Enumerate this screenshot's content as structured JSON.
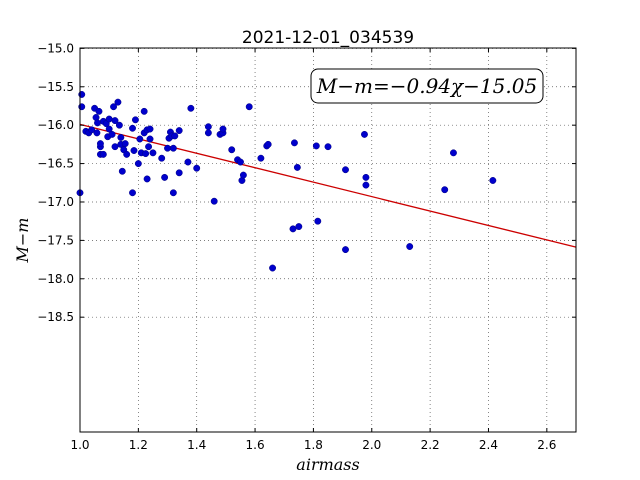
{
  "chart_data": {
    "type": "scatter",
    "title": "2021-12-01_034539",
    "xlabel": "airmass",
    "ylabel": "M−m",
    "xlim": [
      1.0,
      2.7
    ],
    "ylim": [
      -14.995,
      -19.995
    ],
    "y_inverted": true,
    "grid": true,
    "x_ticks": [
      1.0,
      1.2,
      1.4,
      1.6,
      1.8,
      2.0,
      2.2,
      2.4,
      2.6
    ],
    "x_tick_labels": [
      "1.0",
      "1.2",
      "1.4",
      "1.6",
      "1.8",
      "2.0",
      "2.2",
      "2.4",
      "2.6"
    ],
    "y_ticks": [
      -15.0,
      -15.5,
      -16.0,
      -16.5,
      -17.0,
      -17.5,
      -18.0,
      -18.5
    ],
    "y_tick_labels": [
      "−15.0",
      "−15.5",
      "−16.0",
      "−16.5",
      "−17.0",
      "−17.5",
      "−18.0",
      "−18.5"
    ],
    "annotation": "M−m=−0.94χ−15.05",
    "fit": {
      "slope": -0.94,
      "intercept": -15.05
    },
    "point_color": "#0000cc",
    "fit_color": "#cc0000",
    "points": [
      [
        1.0,
        -16.88
      ],
      [
        1.006,
        -15.6
      ],
      [
        1.006,
        -15.76
      ],
      [
        1.02,
        -16.08
      ],
      [
        1.03,
        -16.1
      ],
      [
        1.04,
        -16.06
      ],
      [
        1.05,
        -15.78
      ],
      [
        1.055,
        -15.9
      ],
      [
        1.058,
        -16.1
      ],
      [
        1.06,
        -15.97
      ],
      [
        1.065,
        -15.82
      ],
      [
        1.07,
        -16.28
      ],
      [
        1.07,
        -16.38
      ],
      [
        1.07,
        -16.24
      ],
      [
        1.08,
        -15.95
      ],
      [
        1.08,
        -16.38
      ],
      [
        1.09,
        -15.98
      ],
      [
        1.095,
        -16.15
      ],
      [
        1.1,
        -16.05
      ],
      [
        1.1,
        -15.92
      ],
      [
        1.11,
        -16.12
      ],
      [
        1.115,
        -15.76
      ],
      [
        1.12,
        -15.94
      ],
      [
        1.12,
        -16.28
      ],
      [
        1.13,
        -15.7
      ],
      [
        1.135,
        -16.0
      ],
      [
        1.14,
        -16.16
      ],
      [
        1.14,
        -16.25
      ],
      [
        1.145,
        -16.6
      ],
      [
        1.15,
        -16.32
      ],
      [
        1.155,
        -16.24
      ],
      [
        1.16,
        -16.38
      ],
      [
        1.18,
        -16.04
      ],
      [
        1.18,
        -16.88
      ],
      [
        1.185,
        -16.33
      ],
      [
        1.19,
        -15.93
      ],
      [
        1.2,
        -16.5
      ],
      [
        1.205,
        -16.18
      ],
      [
        1.21,
        -16.36
      ],
      [
        1.22,
        -16.1
      ],
      [
        1.22,
        -15.82
      ],
      [
        1.225,
        -16.37
      ],
      [
        1.23,
        -16.7
      ],
      [
        1.23,
        -16.06
      ],
      [
        1.235,
        -16.28
      ],
      [
        1.24,
        -16.18
      ],
      [
        1.24,
        -16.05
      ],
      [
        1.25,
        -16.36
      ],
      [
        1.28,
        -16.43
      ],
      [
        1.29,
        -16.68
      ],
      [
        1.3,
        -16.3
      ],
      [
        1.305,
        -16.17
      ],
      [
        1.31,
        -16.09
      ],
      [
        1.315,
        -16.14
      ],
      [
        1.32,
        -16.88
      ],
      [
        1.32,
        -16.3
      ],
      [
        1.325,
        -16.14
      ],
      [
        1.34,
        -16.07
      ],
      [
        1.34,
        -16.62
      ],
      [
        1.37,
        -16.48
      ],
      [
        1.38,
        -15.78
      ],
      [
        1.4,
        -16.56
      ],
      [
        1.44,
        -16.02
      ],
      [
        1.44,
        -16.1
      ],
      [
        1.46,
        -16.99
      ],
      [
        1.48,
        -16.12
      ],
      [
        1.49,
        -16.1
      ],
      [
        1.49,
        -16.05
      ],
      [
        1.52,
        -16.32
      ],
      [
        1.54,
        -16.45
      ],
      [
        1.55,
        -16.48
      ],
      [
        1.555,
        -16.72
      ],
      [
        1.56,
        -16.65
      ],
      [
        1.58,
        -15.76
      ],
      [
        1.62,
        -16.43
      ],
      [
        1.64,
        -16.27
      ],
      [
        1.645,
        -16.25
      ],
      [
        1.66,
        -17.86
      ],
      [
        1.73,
        -17.35
      ],
      [
        1.735,
        -16.23
      ],
      [
        1.745,
        -16.55
      ],
      [
        1.75,
        -17.32
      ],
      [
        1.81,
        -16.27
      ],
      [
        1.815,
        -17.25
      ],
      [
        1.85,
        -16.28
      ],
      [
        1.91,
        -16.58
      ],
      [
        1.91,
        -17.62
      ],
      [
        1.975,
        -16.12
      ],
      [
        1.98,
        -16.68
      ],
      [
        1.98,
        -16.78
      ],
      [
        2.13,
        -17.58
      ],
      [
        2.25,
        -16.84
      ],
      [
        2.28,
        -16.36
      ],
      [
        2.415,
        -16.72
      ]
    ]
  }
}
